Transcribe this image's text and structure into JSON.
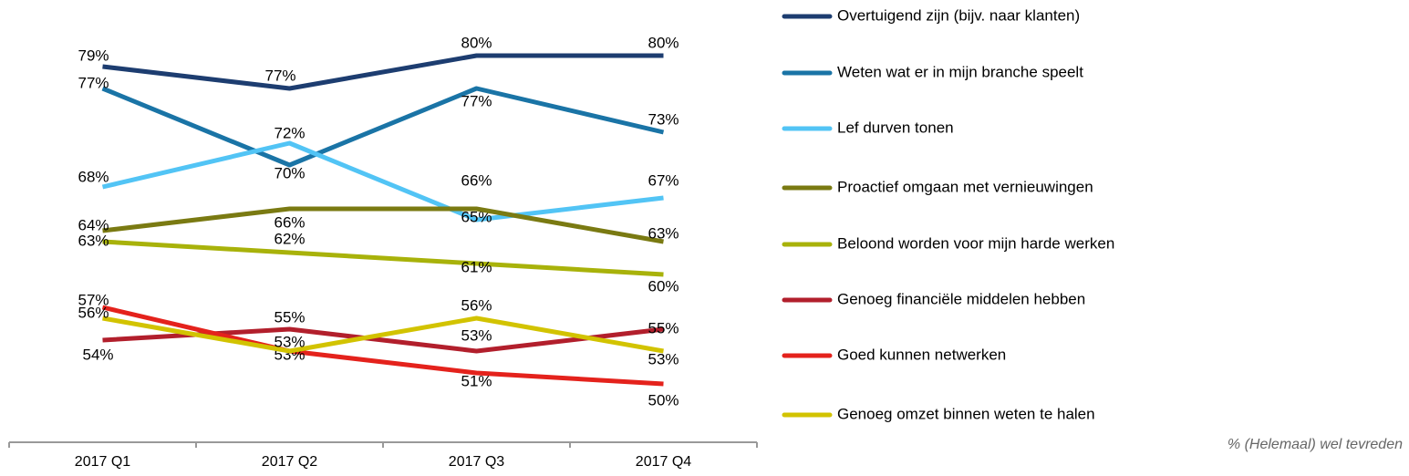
{
  "chart_data": {
    "type": "line",
    "categories": [
      "2017 Q1",
      "2017 Q2",
      "2017 Q3",
      "2017 Q4"
    ],
    "ylim": [
      45,
      85
    ],
    "series": [
      {
        "name": "Overtuigend zijn (bijv. naar klanten)",
        "color": "#1d3d70",
        "values": [
          79,
          77,
          80,
          80
        ],
        "value_labels": [
          "79%",
          "77%",
          "80%",
          "80%"
        ]
      },
      {
        "name": "Weten wat er in mijn branche speelt",
        "color": "#1a74a6",
        "values": [
          77,
          70,
          77,
          73
        ],
        "value_labels": [
          "77%",
          "70%",
          "77%",
          "73%"
        ]
      },
      {
        "name": "Lef durven tonen",
        "color": "#52c4f5",
        "values": [
          68,
          72,
          65,
          67
        ],
        "value_labels": [
          "68%",
          "72%",
          "65%",
          "67%"
        ]
      },
      {
        "name": "Proactief omgaan met vernieuwingen",
        "color": "#7a7a12",
        "values": [
          64,
          66,
          66,
          63
        ],
        "value_labels": [
          "64%",
          "66%",
          "66%",
          "63%"
        ]
      },
      {
        "name": "Beloond worden voor mijn harde werken",
        "color": "#a8b20a",
        "values": [
          63,
          62,
          61,
          60
        ],
        "value_labels": [
          "63%",
          "62%",
          "61%",
          "60%"
        ]
      },
      {
        "name": "Genoeg financiële middelen hebben",
        "color": "#b21f2c",
        "values": [
          54,
          55,
          53,
          55
        ],
        "value_labels": [
          "54%",
          "55%",
          "53%",
          "55%"
        ]
      },
      {
        "name": "Goed kunnen netwerken",
        "color": "#e4221c",
        "values": [
          57,
          53,
          51,
          50
        ],
        "value_labels": [
          "57%",
          "53%",
          "51%",
          "50%"
        ]
      },
      {
        "name": "Genoeg omzet binnen weten te halen",
        "color": "#d2c300",
        "values": [
          56,
          53,
          56,
          53
        ],
        "value_labels": [
          "56%",
          "53%",
          "56%",
          "53%"
        ]
      }
    ],
    "footnote": "% (Helemaal) wel tevreden"
  }
}
